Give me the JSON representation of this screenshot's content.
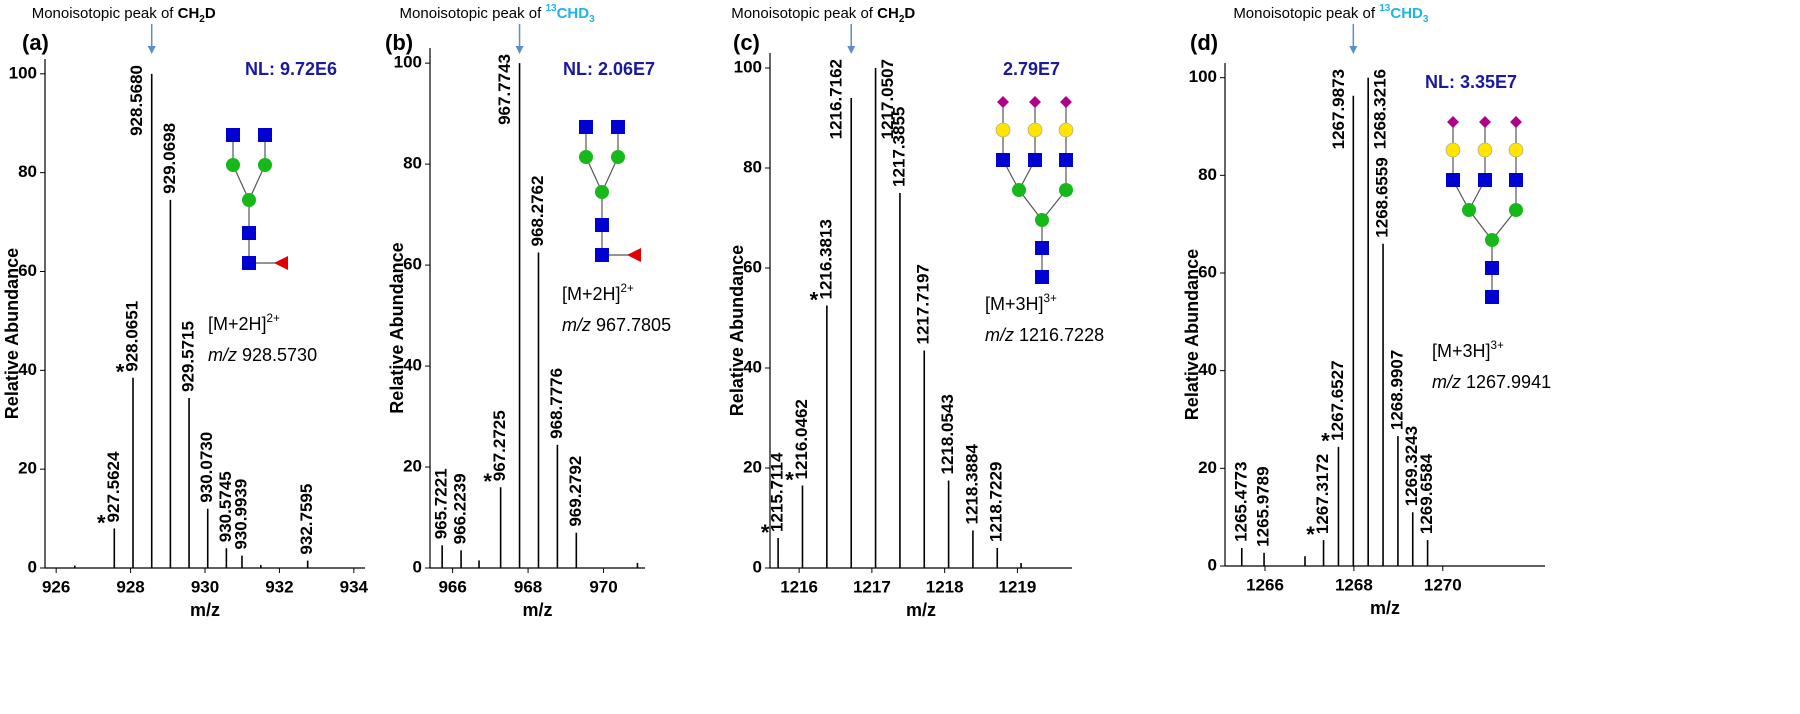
{
  "chart_data": [
    {
      "type": "stem",
      "panel_label": "(a)",
      "xlabel": "m/z",
      "ylabel": "Relative Abundance",
      "annotation": "Monoisotopic peak of ",
      "annotation_formula": [
        {
          "text": "CH"
        },
        {
          "text": "2",
          "sub": true
        },
        {
          "text": "D"
        }
      ],
      "annotation_color": "#000000",
      "annotation_at": 928.568,
      "nl": "NL: 9.72E6",
      "ion": [
        {
          "text": "[M+2H]"
        },
        {
          "text": "2+",
          "sup": true
        }
      ],
      "mz_label": [
        {
          "text": "m/z",
          "italic": true
        },
        {
          "text": " 928.5730"
        }
      ],
      "xlim": [
        925.7,
        934.3
      ],
      "xticks": [
        926,
        928,
        930,
        932,
        934
      ],
      "ylim": [
        0,
        103
      ],
      "yticks": [
        0,
        20,
        40,
        60,
        80,
        100
      ],
      "x": [
        926.5,
        927.5624,
        928.0651,
        928.568,
        929.0698,
        929.5715,
        930.073,
        930.5745,
        930.9939,
        931.5,
        932.7595
      ],
      "values": [
        0.5,
        8,
        38.5,
        100,
        74.5,
        34.4,
        12,
        4,
        2.5,
        0.6,
        1.5
      ],
      "value_labels": [
        null,
        "927.5624",
        "928.0651",
        "928.5680",
        "929.0698",
        "929.5715",
        "930.0730",
        "930.5745",
        "930.9939",
        null,
        "932.7595"
      ],
      "markers": [
        null,
        "*",
        "*",
        null,
        null,
        null,
        null,
        null,
        null,
        null,
        null
      ],
      "color": "#000000"
    },
    {
      "type": "stem",
      "panel_label": "(b)",
      "xlabel": "m/z",
      "ylabel": "Relative Abundance",
      "annotation": "Monoisotopic peak of ",
      "annotation_formula": [
        {
          "text": "13",
          "sup": true
        },
        {
          "text": "CHD"
        },
        {
          "text": "3",
          "sub": true
        }
      ],
      "annotation_color": "#1fb4e6",
      "annotation_at": 967.7743,
      "nl": "NL: 2.06E7",
      "ion": [
        {
          "text": "[M+2H]"
        },
        {
          "text": "2+",
          "sup": true
        }
      ],
      "mz_label": [
        {
          "text": "m/z",
          "italic": true
        },
        {
          "text": " 967.7805"
        }
      ],
      "xlim": [
        965.4,
        971.1
      ],
      "xticks": [
        966,
        968,
        970
      ],
      "ylim": [
        0,
        103
      ],
      "yticks": [
        0,
        20,
        40,
        60,
        80,
        100
      ],
      "x": [
        965.7221,
        966.2239,
        966.7,
        967.2725,
        967.7743,
        968.2762,
        968.7776,
        969.2792,
        970.9
      ],
      "values": [
        4.5,
        3.5,
        1.5,
        16,
        100,
        62.5,
        24.4,
        7,
        1
      ],
      "value_labels": [
        "965.7221",
        "966.2239",
        null,
        "967.2725",
        "967.7743",
        "968.2762",
        "968.7776",
        "969.2792",
        null
      ],
      "markers": [
        null,
        null,
        null,
        "*",
        null,
        null,
        null,
        null,
        null
      ],
      "color": "#000000"
    },
    {
      "type": "stem",
      "panel_label": "(c)",
      "xlabel": "m/z",
      "ylabel": "Relative Abundance",
      "annotation": "Monoisotopic peak of ",
      "annotation_formula": [
        {
          "text": "CH"
        },
        {
          "text": "2",
          "sub": true
        },
        {
          "text": "D"
        }
      ],
      "annotation_color": "#000000",
      "annotation_at": 1216.7162,
      "nl": "2.79E7",
      "ion": [
        {
          "text": "[M+3H]"
        },
        {
          "text": "3+",
          "sup": true
        }
      ],
      "mz_label": [
        {
          "text": "m/z",
          "italic": true
        },
        {
          "text": " 1216.7228"
        }
      ],
      "xlim": [
        1215.6,
        1219.75
      ],
      "xticks": [
        1216,
        1217,
        1218,
        1219
      ],
      "ylim": [
        0,
        103
      ],
      "yticks": [
        0,
        20,
        40,
        60,
        80,
        100
      ],
      "x": [
        1215.7114,
        1216.0462,
        1216.3813,
        1216.7162,
        1217.0507,
        1217.3855,
        1217.7197,
        1218.0543,
        1218.3884,
        1218.7229,
        1219.05
      ],
      "values": [
        6,
        16.5,
        52.5,
        94,
        100,
        75,
        43.5,
        17.5,
        7.5,
        4,
        1
      ],
      "value_labels": [
        "1215.7114",
        "1216.0462",
        "1216.3813",
        "1216.7162",
        "1217.0507",
        "1217.3855",
        "1217.7197",
        "1218.0543",
        "1218.3884",
        "1218.7229",
        null
      ],
      "markers": [
        "*",
        "*",
        "*",
        null,
        null,
        null,
        null,
        null,
        null,
        null,
        null
      ],
      "color": "#000000"
    },
    {
      "type": "stem",
      "panel_label": "(d)",
      "xlabel": "m/z",
      "ylabel": "Relative Abundance",
      "annotation": "Monoisotopic peak of ",
      "annotation_formula": [
        {
          "text": "13",
          "sup": true
        },
        {
          "text": "CHD"
        },
        {
          "text": "3",
          "sub": true
        }
      ],
      "annotation_color": "#1fb4e6",
      "annotation_at": 1267.9873,
      "nl": "NL: 3.35E7",
      "ion": [
        {
          "text": "[M+3H]"
        },
        {
          "text": "3+",
          "sup": true
        }
      ],
      "mz_label": [
        {
          "text": "m/z",
          "italic": true
        },
        {
          "text": " 1267.9941"
        }
      ],
      "xlim": [
        1265.1,
        1272.3
      ],
      "xticks": [
        1266,
        1268,
        1270
      ],
      "ylim": [
        0,
        103
      ],
      "yticks": [
        0,
        20,
        40,
        60,
        80,
        100
      ],
      "x": [
        1265.4773,
        1265.9789,
        1266.9,
        1267.3172,
        1267.6527,
        1267.9873,
        1268.3216,
        1268.6559,
        1268.9907,
        1269.3243,
        1269.6584
      ],
      "values": [
        3.7,
        2.7,
        2,
        5.3,
        24.4,
        96.3,
        100,
        66,
        26.6,
        11,
        5.3
      ],
      "value_labels": [
        "1265.4773",
        "1265.9789",
        null,
        "1267.3172",
        "1267.6527",
        "1267.9873",
        "1268.3216",
        "1268.6559",
        "1268.9907",
        "1269.3243",
        "1269.6584"
      ],
      "markers": [
        null,
        null,
        null,
        "*",
        "*",
        null,
        null,
        null,
        null,
        null,
        null
      ],
      "color": "#000000"
    }
  ]
}
